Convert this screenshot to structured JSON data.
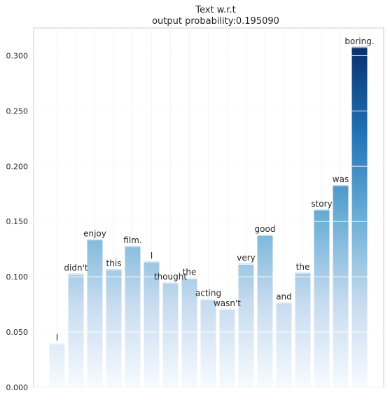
{
  "chart_data": {
    "type": "bar",
    "title": "Text w.r.t",
    "subtitle": "output probability:0.195090",
    "xlabel": "",
    "ylabel": "",
    "ylim": [
      0,
      0.325
    ],
    "yticks": [
      "0.000",
      "0.050",
      "0.100",
      "0.150",
      "0.200",
      "0.250",
      "0.300"
    ],
    "ytick_values": [
      0,
      0.05,
      0.1,
      0.15,
      0.2,
      0.25,
      0.3
    ],
    "grid": true,
    "colormap": [
      "#f7fbff",
      "#c6dbef",
      "#6baed6",
      "#2171b5",
      "#08306b"
    ],
    "categories": [
      "I",
      "didn't",
      "enjoy",
      "this",
      "film.",
      "I",
      "thought",
      "the",
      "acting",
      "wasn't",
      "very",
      "good",
      "and",
      "the",
      "story",
      "was",
      "boring."
    ],
    "values": [
      0.04,
      0.103,
      0.134,
      0.107,
      0.128,
      0.114,
      0.095,
      0.099,
      0.08,
      0.071,
      0.112,
      0.138,
      0.077,
      0.104,
      0.161,
      0.183,
      0.308
    ]
  }
}
